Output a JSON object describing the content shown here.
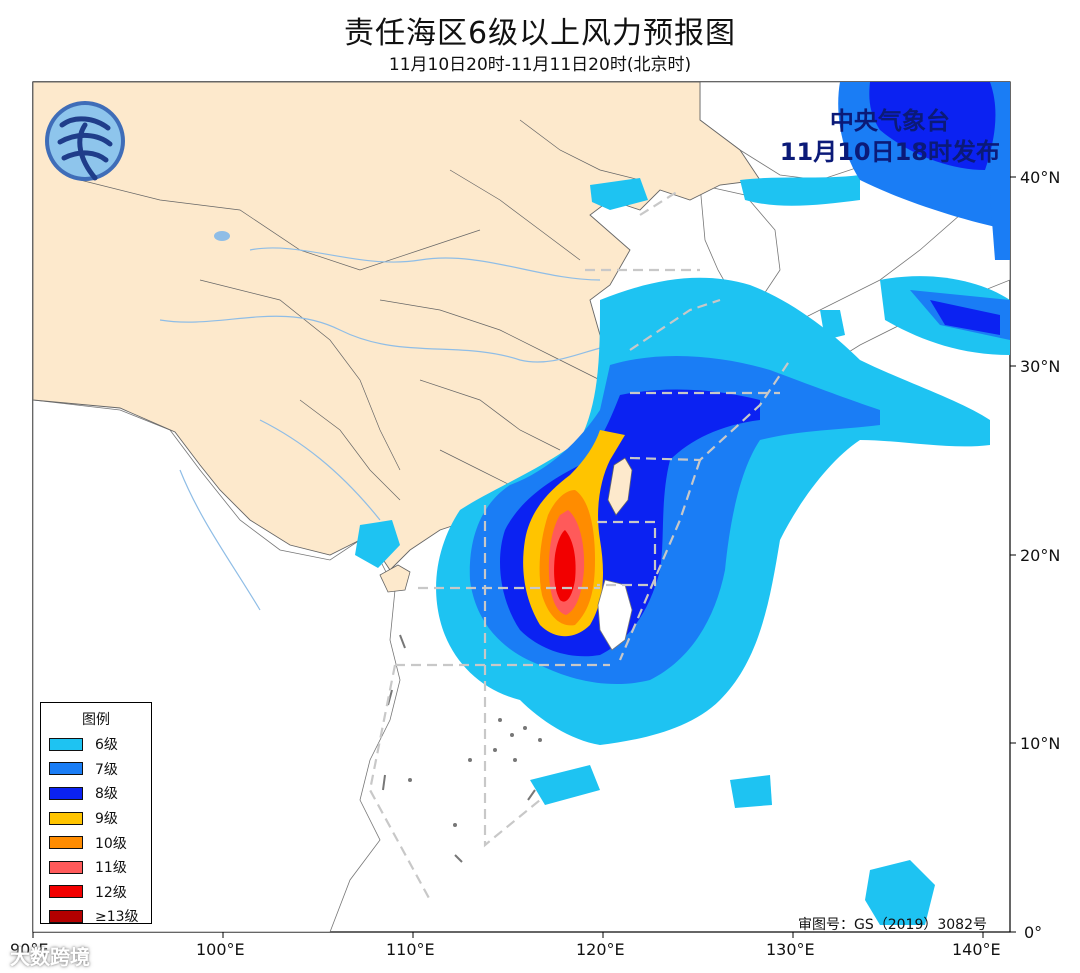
{
  "title": "责任海区6级以上风力预报图",
  "subtitle": "11月10日20时-11月11日20时(北京时)",
  "issuer": {
    "name": "中央气象台",
    "issued": "11月10日18时发布"
  },
  "logo_icon": "cma-logo-icon",
  "legend": {
    "title": "图例",
    "items": [
      {
        "label": "6级",
        "color": "#1ec3f2"
      },
      {
        "label": "7级",
        "color": "#1a7df5"
      },
      {
        "label": "8级",
        "color": "#0b22f2"
      },
      {
        "label": "9级",
        "color": "#ffc400"
      },
      {
        "label": "10级",
        "color": "#ff8c00"
      },
      {
        "label": "11级",
        "color": "#ff5a5a"
      },
      {
        "label": "12级",
        "color": "#f20000"
      },
      {
        "label": "≥13级",
        "color": "#b30000"
      }
    ]
  },
  "axes": {
    "x_ticks": [
      "90°E",
      "100°E",
      "110°E",
      "120°E",
      "130°E",
      "140°E"
    ],
    "y_ticks": [
      "40°N",
      "30°N",
      "20°N",
      "10°N",
      "0°"
    ]
  },
  "review_number": "审图号：GS（2019）3082号",
  "watermark": "大数跨境",
  "colors": {
    "land_china": "#fde9cc",
    "ocean": "#ffffff",
    "boundary": "#666666",
    "river": "#8fbde6",
    "sea_zone_line": "#c8c8c8"
  }
}
